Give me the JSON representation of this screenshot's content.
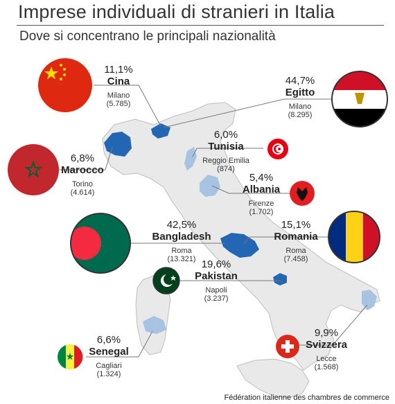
{
  "header": {
    "title": "Imprese individuali di stranieri in Italia",
    "subtitle": "Dove si concentrano le principali nazionalità"
  },
  "colors": {
    "map_fill": "#e9e9e9",
    "map_stroke": "#bdbdbd",
    "highlight_dark": "#2366b3",
    "highlight_light": "#a7c3e1",
    "leader_line": "#777777"
  },
  "nationalities": [
    {
      "id": "cina",
      "percent": "11,1%",
      "name": "Cina",
      "city": "Milano",
      "count": "(5.785)",
      "icon": "china-flag-icon"
    },
    {
      "id": "egitto",
      "percent": "44,7%",
      "name": "Egitto",
      "city": "Milano",
      "count": "(8.295)",
      "icon": "egypt-flag-icon"
    },
    {
      "id": "tunisia",
      "percent": "6,0%",
      "name": "Tunisia",
      "city": "Reggio Emilia",
      "count": "(874)",
      "icon": "tunisia-flag-icon"
    },
    {
      "id": "marocco",
      "percent": "6,8%",
      "name": "Marocco",
      "city": "Torino",
      "count": "(4.614)",
      "icon": "morocco-flag-icon"
    },
    {
      "id": "albania",
      "percent": "5,4%",
      "name": "Albania",
      "city": "Firenze",
      "count": "(1.702)",
      "icon": "albania-flag-icon"
    },
    {
      "id": "bangladesh",
      "percent": "42,5%",
      "name": "Bangladesh",
      "city": "Roma",
      "count": "(13.321)",
      "icon": "bangladesh-flag-icon"
    },
    {
      "id": "romania",
      "percent": "15,1%",
      "name": "Romania",
      "city": "Roma",
      "count": "(7.458)",
      "icon": "romania-flag-icon"
    },
    {
      "id": "pakistan",
      "percent": "19,6%",
      "name": "Pakistan",
      "city": "Napoli",
      "count": "(3.237)",
      "icon": "pakistan-flag-icon"
    },
    {
      "id": "senegal",
      "percent": "6,6%",
      "name": "Senegal",
      "city": "Cagliari",
      "count": "(1.324)",
      "icon": "senegal-flag-icon"
    },
    {
      "id": "svizzera",
      "percent": "9,9%",
      "name": "Svizzera",
      "city": "Lecce",
      "count": "(1.568)",
      "icon": "switzerland-flag-icon"
    }
  ],
  "source": "Fédération italienne des chambres de commerce"
}
